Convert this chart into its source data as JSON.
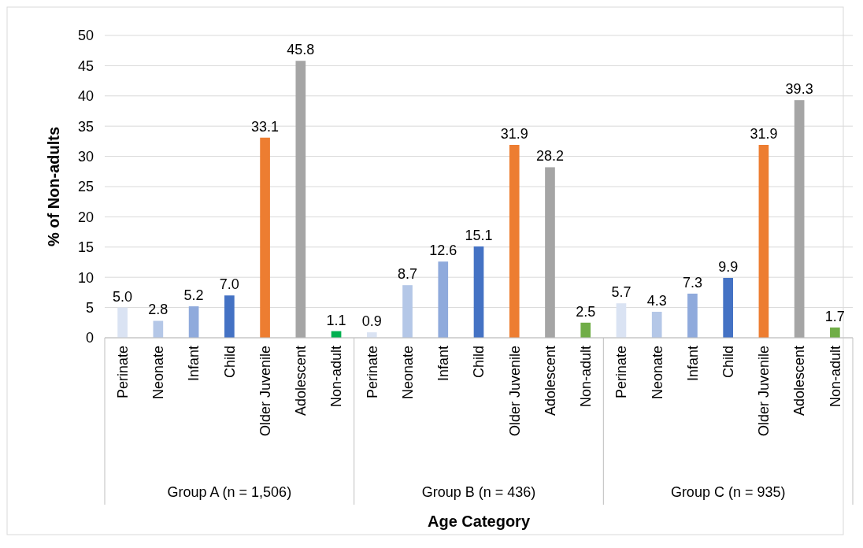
{
  "chart_data": {
    "type": "bar",
    "xlabel": "Age Category",
    "ylabel": "% of Non-adults",
    "categories": [
      "Perinate",
      "Neonate",
      "Infant",
      "Child",
      "Older Juvenile",
      "Adolescent",
      "Non-adult",
      "Perinate",
      "Neonate",
      "Infant",
      "Child",
      "Older Juvenile",
      "Adolescent",
      "Non-adult",
      "Perinate",
      "Neonate",
      "Infant",
      "Child",
      "Older Juvenile",
      "Adolescent",
      "Non-adult"
    ],
    "values": [
      5.0,
      2.8,
      5.2,
      7.0,
      33.1,
      45.8,
      1.1,
      0.9,
      8.7,
      12.6,
      15.1,
      31.9,
      28.2,
      2.5,
      5.7,
      4.3,
      7.3,
      9.9,
      31.9,
      39.3,
      1.7
    ],
    "value_labels": [
      "5.0",
      "2.8",
      "5.2",
      "7.0",
      "33.1",
      "45.8",
      "1.1",
      "0.9",
      "8.7",
      "12.6",
      "15.1",
      "31.9",
      "28.2",
      "2.5",
      "5.7",
      "4.3",
      "7.3",
      "9.9",
      "31.9",
      "39.3",
      "1.7"
    ],
    "colors": [
      "#dae3f3",
      "#b4c7e7",
      "#8faadc",
      "#4472c4",
      "#ed7d31",
      "#a5a5a5",
      "#00b050",
      "#dae3f3",
      "#b4c7e7",
      "#8faadc",
      "#4472c4",
      "#ed7d31",
      "#a5a5a5",
      "#70ad47",
      "#dae3f3",
      "#b4c7e7",
      "#8faadc",
      "#4472c4",
      "#ed7d31",
      "#a5a5a5",
      "#70ad47"
    ],
    "annotations": [
      "Group A (n = 1,506)",
      "Group B (n = 436)",
      "Group C (n = 935)"
    ],
    "ylim": [
      0,
      50
    ],
    "yticks": [
      0,
      5,
      10,
      15,
      20,
      25,
      30,
      35,
      40,
      45,
      50
    ],
    "grid": "y"
  }
}
